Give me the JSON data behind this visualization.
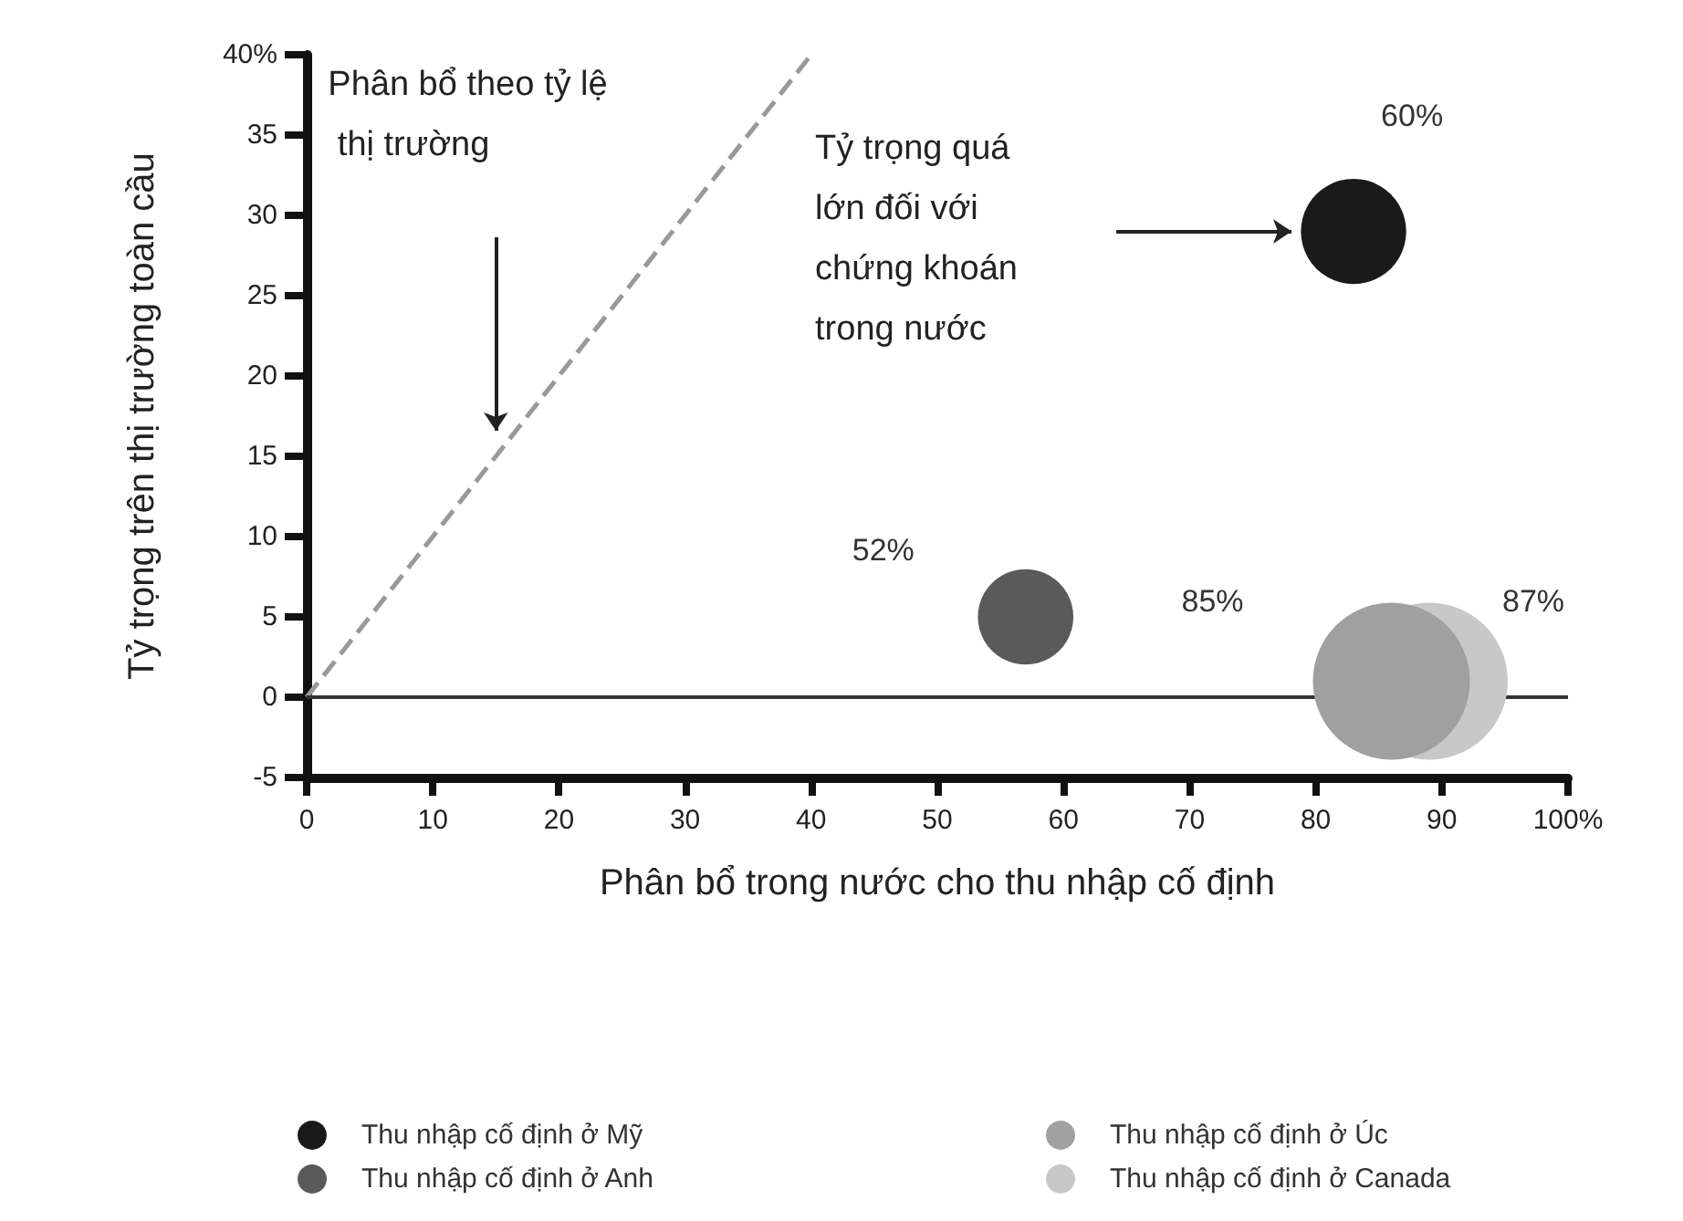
{
  "chart_data": {
    "type": "bubble",
    "xlabel": "Phân bổ trong nước cho thu nhập cố định",
    "ylabel": "Tỷ trọng trên thị trường toàn cầu",
    "xlim": [
      0,
      100
    ],
    "xticks": [
      0,
      10,
      20,
      30,
      40,
      50,
      60,
      70,
      80,
      90,
      {
        "value": 100,
        "label": "100%"
      }
    ],
    "ylim": [
      -5,
      40
    ],
    "yticks": [
      -5,
      0,
      5,
      10,
      15,
      20,
      25,
      30,
      35,
      {
        "value": 40,
        "label": "40%"
      }
    ],
    "grid": false,
    "legend": "bottom",
    "ref_lines": [
      {
        "axis": "y",
        "value": 0,
        "label": null,
        "color": "#333333"
      }
    ],
    "annotations": [
      "Phân bổ theo tỷ lệ thị trường",
      "Tỷ trọng quá lớn đối với chứng khoán trong nước",
      "60%",
      "52%",
      "85%",
      "87%"
    ],
    "series": [
      {
        "type": "line",
        "x": [
          0,
          40
        ],
        "values": [
          0,
          40
        ],
        "color": "#999999",
        "line_style": "dashed",
        "marker": "none"
      },
      {
        "name": "Thu nhập cố định ở Mỹ",
        "color": "#1a1a1a",
        "x": [
          83
        ],
        "values": [
          29
        ],
        "sizes": [
          0.45
        ]
      },
      {
        "name": "Thu nhập cố định ở Anh",
        "color": "#5a5a5a",
        "x": [
          57
        ],
        "values": [
          5
        ],
        "sizes": [
          0.37
        ]
      },
      {
        "name": "Thu nhập cố định ở Úc",
        "color": "#a0a0a0",
        "x": [
          86
        ],
        "values": [
          1
        ],
        "sizes": [
          1
        ]
      },
      {
        "name": "Thu nhập cố định ở Canada",
        "color": "#c8c8c8",
        "x": [
          89
        ],
        "values": [
          1
        ],
        "sizes": [
          1
        ]
      }
    ]
  }
}
